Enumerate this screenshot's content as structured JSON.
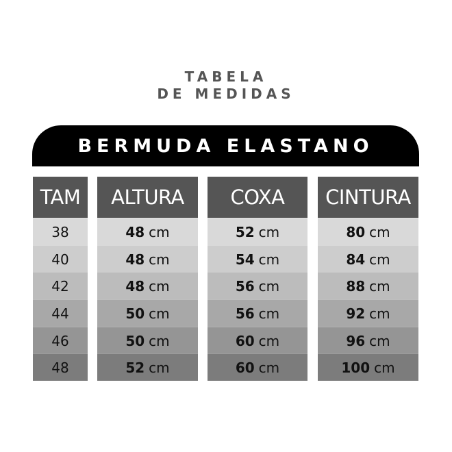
{
  "title_line1": "TABELA",
  "title_line2": "DE MEDIDAS",
  "banner": "BERMUDA ELASTANO",
  "unit": "cm",
  "columns": [
    {
      "header": "TAM",
      "values": [
        "38",
        "40",
        "42",
        "44",
        "46",
        "48"
      ]
    },
    {
      "header": "ALTURA",
      "values": [
        "48",
        "48",
        "48",
        "50",
        "50",
        "52"
      ]
    },
    {
      "header": "COXA",
      "values": [
        "52",
        "54",
        "56",
        "56",
        "60",
        "60"
      ]
    },
    {
      "header": "CINTURA",
      "values": [
        "80",
        "84",
        "88",
        "92",
        "96",
        "100"
      ]
    }
  ]
}
